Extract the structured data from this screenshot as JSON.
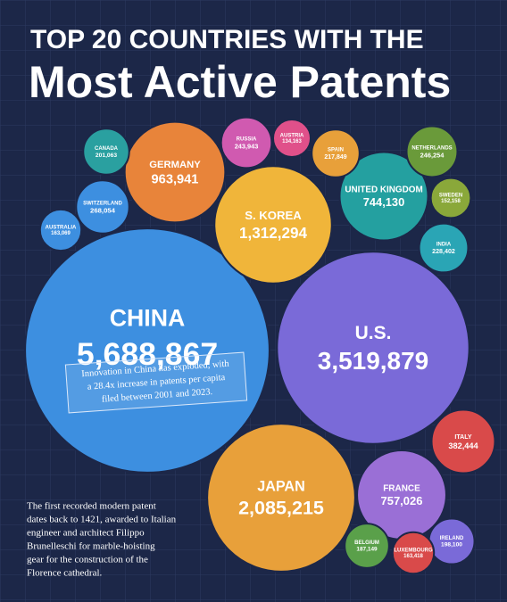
{
  "chart_data": {
    "type": "bubble",
    "title": "TOP 20 COUNTRIES WITH THE",
    "subtitle": "Most Active Patents",
    "categories": [
      "CHINA",
      "U.S.",
      "JAPAN",
      "S. KOREA",
      "GERMANY",
      "FRANCE",
      "UNITED KINGDOM",
      "ITALY",
      "SWITZERLAND",
      "NETHERLANDS",
      "RUSSIA",
      "INDIA",
      "SPAIN",
      "CANADA",
      "IRELAND",
      "BELGIUM",
      "LUXEMBOURG",
      "AUSTRALIA",
      "SWEDEN",
      "AUSTRIA"
    ],
    "values": [
      5688867,
      3519879,
      2085215,
      1312294,
      963941,
      757026,
      744130,
      382444,
      268054,
      246254,
      243943,
      228402,
      217849,
      201063,
      198100,
      187149,
      163418,
      163069,
      152158,
      134163
    ],
    "value_labels": [
      "5,688,867",
      "3,519,879",
      "2,085,215",
      "1,312,294",
      "963,941",
      "757,026",
      "744,130",
      "382,444",
      "268,054",
      "246,254",
      "243,943",
      "228,402",
      "217,849",
      "201,063",
      "198,100",
      "187,149",
      "163,418",
      "163,069",
      "152,158",
      "134,163"
    ],
    "colors": [
      "#3d8fe0",
      "#7a6ad8",
      "#e8a03a",
      "#f0b53a",
      "#e8843a",
      "#9a6fd6",
      "#24a0a0",
      "#d94a4a",
      "#3d8fe0",
      "#6a9a3a",
      "#d05ab0",
      "#2aa5b5",
      "#e8a03a",
      "#2aa0a0",
      "#7a6ad8",
      "#5aa04a",
      "#d94a4a",
      "#3d8fe0",
      "#8aa83a",
      "#e0508a"
    ],
    "china_note": [
      "Innovation in China has exploded, with",
      "a 28.4x increase in patents per capita",
      "filed between 2001 and 2023."
    ],
    "footnote": [
      "The first recorded modern patent",
      "dates back to 1421, awarded to Italian",
      "engineer and architect Filippo",
      "Brunelleschi for marble-hoisting",
      "gear for the construction of the",
      "Florence cathedral."
    ]
  }
}
